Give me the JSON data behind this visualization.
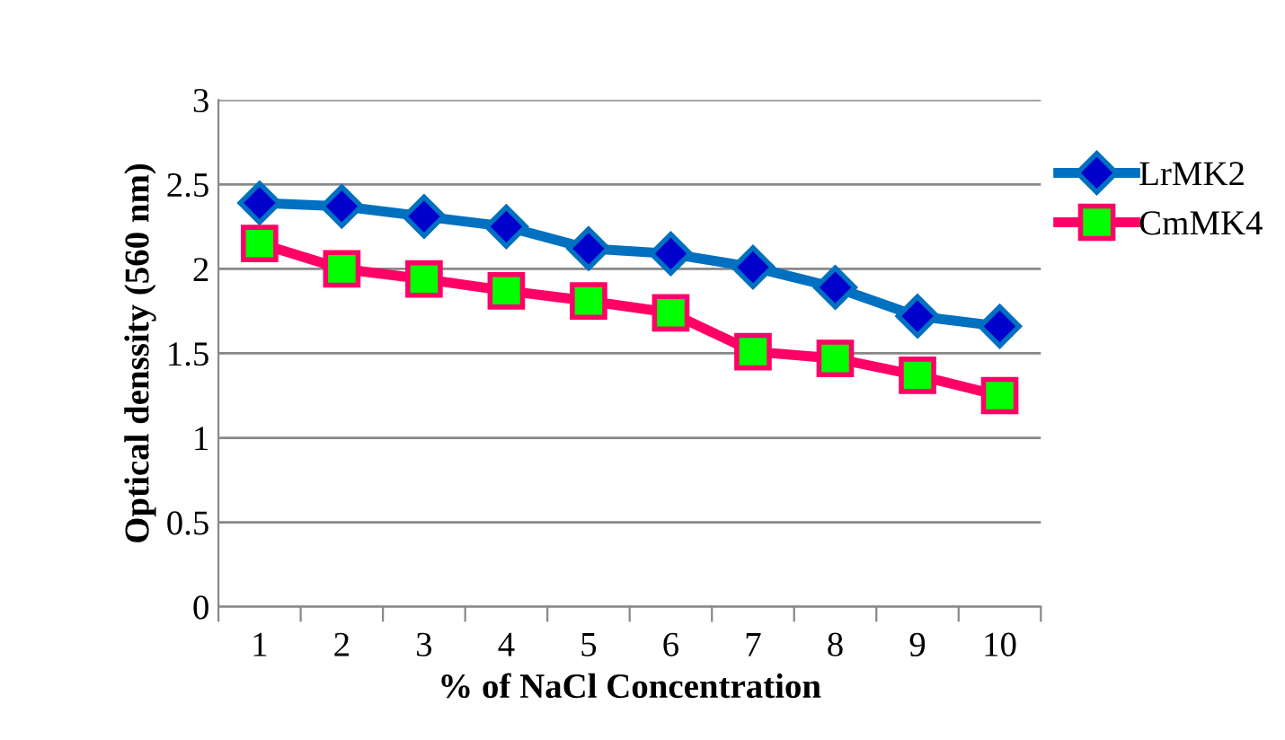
{
  "chart_data": {
    "type": "line",
    "xlabel": "% of NaCl Concentration",
    "ylabel": "Optical denssity (560 nm)",
    "categories": [
      "1",
      "2",
      "3",
      "4",
      "5",
      "6",
      "7",
      "8",
      "9",
      "10"
    ],
    "series": [
      {
        "name": "LrMK2",
        "color": "#0070c0",
        "marker": "diamond",
        "values": [
          2.39,
          2.37,
          2.31,
          2.25,
          2.12,
          2.09,
          2.01,
          1.89,
          1.72,
          1.66
        ]
      },
      {
        "name": "CmMK4",
        "color": "#ff0066",
        "marker": "square",
        "values": [
          2.15,
          2.0,
          1.94,
          1.87,
          1.81,
          1.74,
          1.51,
          1.47,
          1.37,
          1.25
        ]
      }
    ],
    "ylim": [
      0,
      3
    ],
    "yticks": [
      0,
      0.5,
      1,
      1.5,
      2,
      2.5,
      3
    ],
    "grid": "y",
    "legend": "right",
    "line_style": "solid"
  }
}
